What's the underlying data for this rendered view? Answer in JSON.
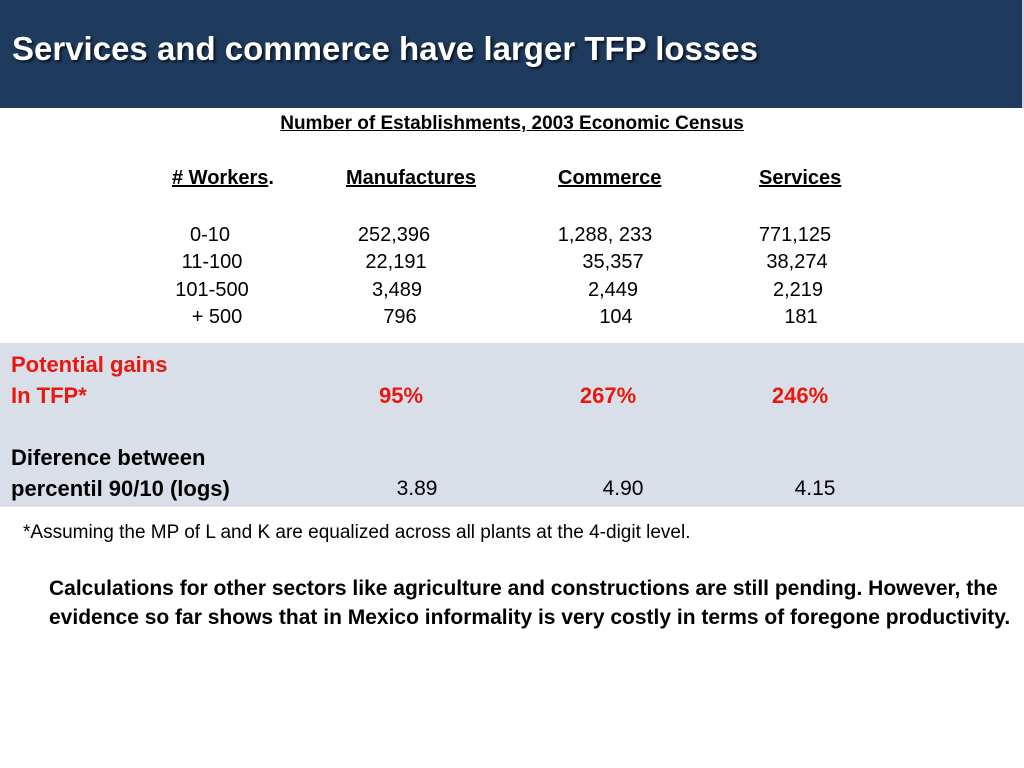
{
  "title": "Services and commerce have larger TFP losses",
  "table": {
    "title": "Number of Establishments, 2003 Economic Census",
    "header_workers": "# Workers",
    "header_workers_dot": ".",
    "columns": [
      "Manufactures",
      "Commerce",
      "Services"
    ],
    "rows": [
      {
        "label": "0-10",
        "values": [
          "252,396",
          "1,288, 233",
          "771,125"
        ]
      },
      {
        "label": "11-100",
        "values": [
          "22,191",
          "35,357",
          "38,274"
        ]
      },
      {
        "label": "101-500",
        "values": [
          "3,489",
          "2,449",
          "2,219"
        ]
      },
      {
        "label": "+ 500",
        "values": [
          "796",
          "104",
          "181"
        ]
      }
    ]
  },
  "gains": {
    "label_line1": "Potential gains",
    "label_line2": "In TFP*",
    "values": [
      "95%",
      "267%",
      "246%"
    ],
    "color": "#e8180f"
  },
  "difference": {
    "label_line1": "Diference between",
    "label_line2": "percentil 90/10 (logs)",
    "values": [
      "3.89",
      "4.90",
      "4.15"
    ]
  },
  "footnote": "*Assuming the MP of L and K are equalized across all plants at the 4-digit level.",
  "conclusion": "Calculations for other sectors like agriculture and constructions are still pending.  However, the evidence so far shows that in Mexico informality is very costly in terms of foregone productivity.",
  "colors": {
    "title_bar": "#1e3a5c",
    "band": "#d8dfe8"
  }
}
